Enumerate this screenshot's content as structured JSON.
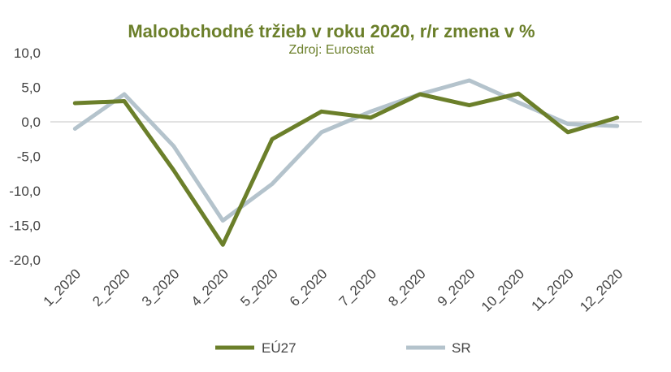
{
  "chart_data": {
    "type": "line",
    "title": "Maloobchodné tržieb v roku 2020, r/r zmena v %",
    "subtitle": "Zdroj: Eurostat",
    "xlabel": "",
    "ylabel": "",
    "categories": [
      "1_2020",
      "2_2020",
      "3_2020",
      "4_2020",
      "5_2020",
      "6_2020",
      "7_2020",
      "8_2020",
      "9_2020",
      "10_2020",
      "11_2020",
      "12_2020"
    ],
    "y_ticks": [
      "10,0",
      "5,0",
      "0,0",
      "-5,0",
      "-10,0",
      "-15,0",
      "-20,0"
    ],
    "ylim": [
      -20,
      10
    ],
    "grid": false,
    "zero_line": true,
    "legend_position": "bottom",
    "series": [
      {
        "name": "EÚ27",
        "color": "#6b7f2a",
        "values": [
          2.7,
          3.0,
          -7.0,
          -17.8,
          -2.5,
          1.5,
          0.6,
          4.0,
          2.4,
          4.1,
          -1.5,
          0.6
        ]
      },
      {
        "name": "SR",
        "color": "#b4c3cc",
        "values": [
          -1.0,
          4.0,
          -3.5,
          -14.3,
          -9.0,
          -1.5,
          1.5,
          4.0,
          6.0,
          2.8,
          -0.3,
          -0.6
        ]
      }
    ]
  }
}
